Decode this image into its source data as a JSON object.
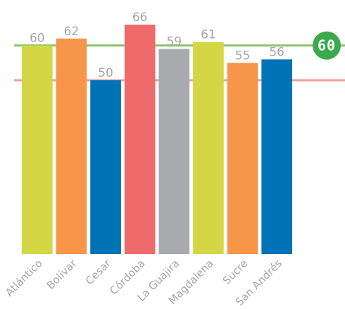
{
  "chart_data": {
    "type": "bar",
    "categories": [
      "Atlántico",
      "Bolívar",
      "Cesar",
      "Córdoba",
      "La Guajira",
      "Magdalena",
      "Sucre",
      "San Andrés"
    ],
    "values": [
      60,
      62,
      50,
      66,
      59,
      61,
      55,
      56
    ],
    "bar_colors": [
      "#d4d743",
      "#f7964a",
      "#0072b6",
      "#ee6a6b",
      "#a9aaad",
      "#d4d743",
      "#f7964a",
      "#0072b6"
    ],
    "title": "",
    "xlabel": "",
    "ylabel": "",
    "ylim": [
      0,
      66
    ],
    "reference_lines": [
      {
        "value": 60,
        "color": "#8dc26b",
        "label": "60",
        "badge_color": "#3aaa4f"
      },
      {
        "value": 50,
        "color": "#efa19a"
      }
    ],
    "grid": false,
    "legend": "none"
  }
}
